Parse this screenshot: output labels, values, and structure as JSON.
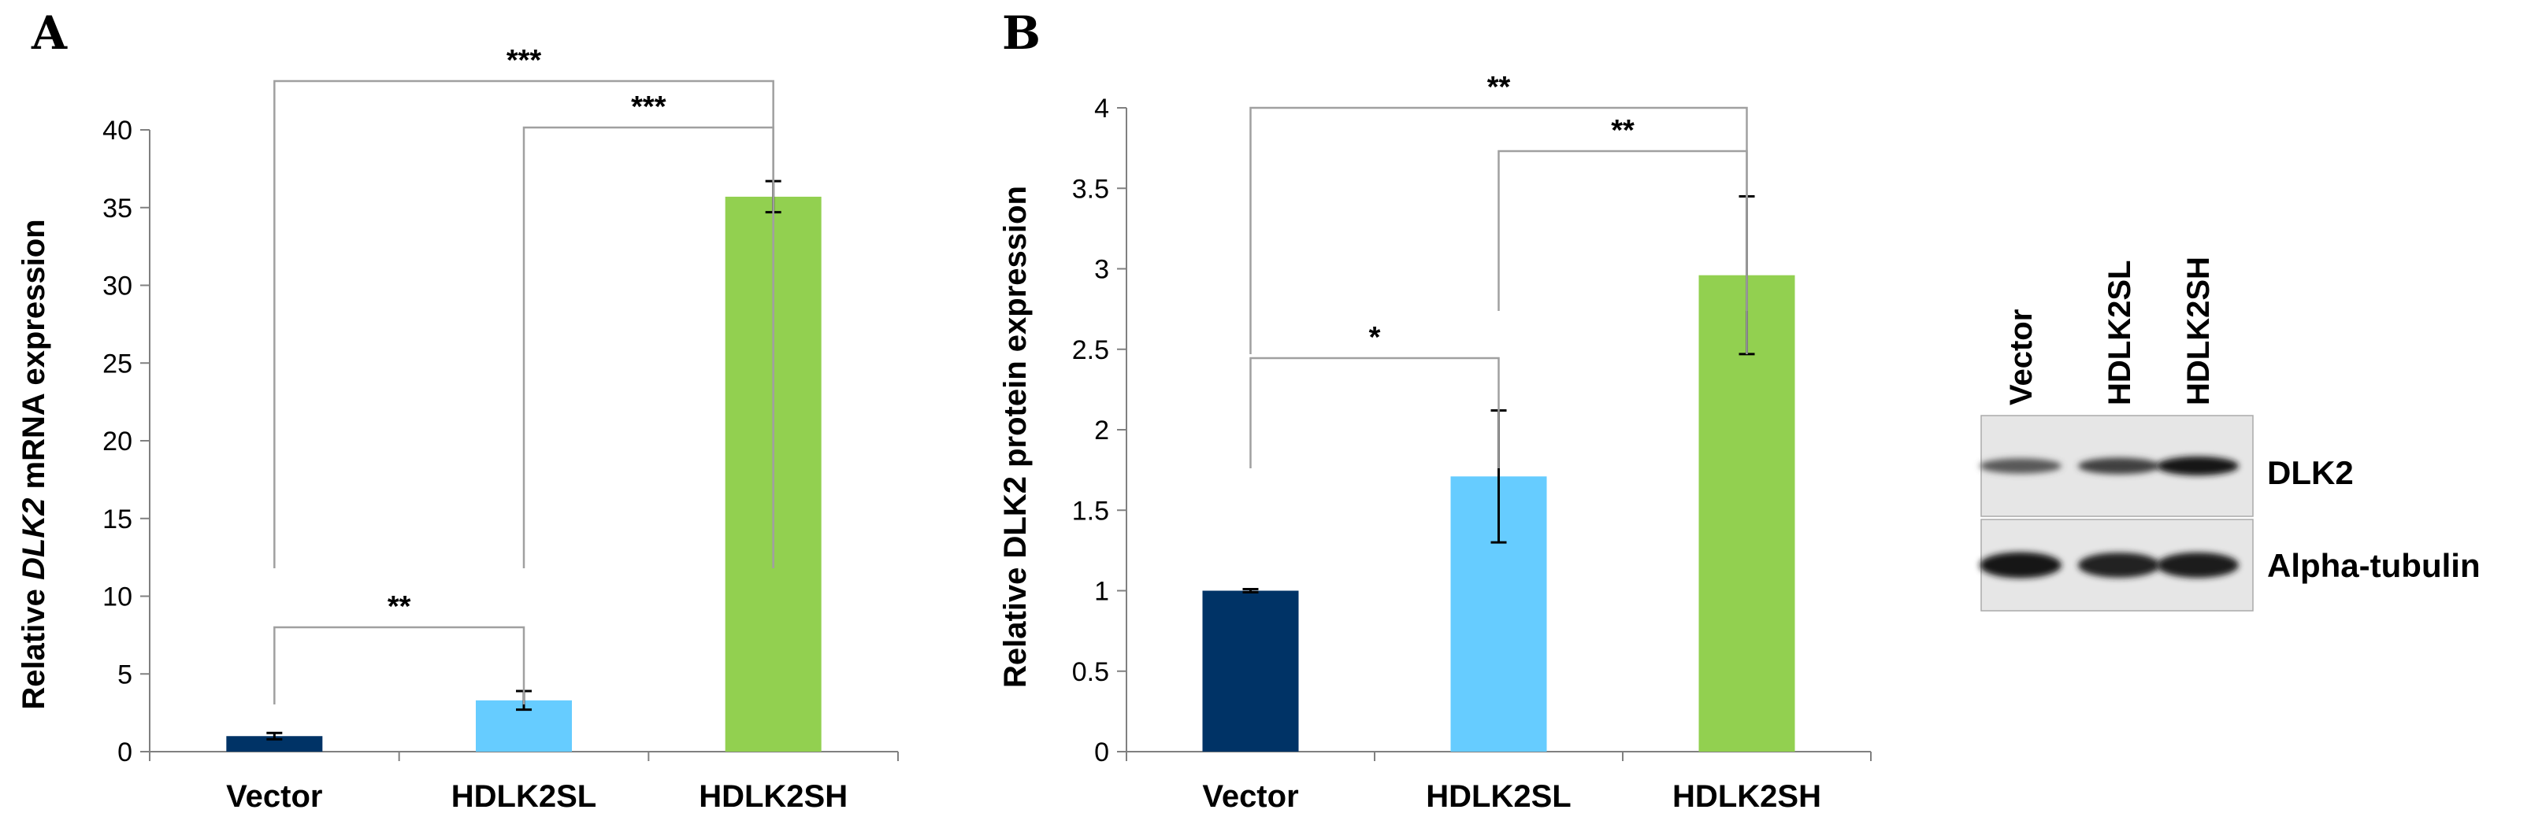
{
  "chart_data": [
    {
      "panel": "A",
      "type": "bar",
      "categories": [
        "Vector",
        "HDLK2SL",
        "HDLK2SH"
      ],
      "values": [
        1,
        3.3,
        35.7
      ],
      "errors": [
        0.2,
        0.6,
        1.0
      ],
      "colors": [
        "#003366",
        "#66CCFF",
        "#92D050"
      ],
      "ylabel_prefix": "Relative ",
      "ylabel_gene": "DLK2",
      "ylabel_suffix": " mRNA expression",
      "ylim": [
        0,
        40
      ],
      "yticks": [
        0,
        5,
        10,
        15,
        20,
        25,
        30,
        35,
        40
      ],
      "grid": false,
      "comparisons": [
        {
          "from": 0,
          "to": 1,
          "label": "**"
        },
        {
          "from": 1,
          "to": 2,
          "label": "***"
        },
        {
          "from": 0,
          "to": 2,
          "label": "***"
        }
      ]
    },
    {
      "panel": "B",
      "type": "bar",
      "categories": [
        "Vector",
        "HDLK2SL",
        "HDLK2SH"
      ],
      "values": [
        1.0,
        1.71,
        2.96
      ],
      "errors": [
        0.01,
        0.41,
        0.49
      ],
      "colors": [
        "#003366",
        "#66CCFF",
        "#92D050"
      ],
      "ylabel": "Relative DLK2 protein expression",
      "ylim": [
        0,
        4
      ],
      "yticks": [
        0,
        0.5,
        1,
        1.5,
        2,
        2.5,
        3,
        3.5,
        4
      ],
      "grid": false,
      "comparisons": [
        {
          "from": 0,
          "to": 1,
          "label": "*"
        },
        {
          "from": 1,
          "to": 2,
          "label": "**"
        },
        {
          "from": 0,
          "to": 2,
          "label": "**"
        }
      ]
    }
  ],
  "blot": {
    "lanes": [
      "Vector",
      "HDLK2SL",
      "HDLK2SH"
    ],
    "rows": [
      {
        "label": "DLK2",
        "intensities": [
          0.55,
          0.7,
          1.0
        ]
      },
      {
        "label": "Alpha-tubulin",
        "intensities": [
          1.0,
          0.92,
          0.95
        ]
      }
    ]
  }
}
